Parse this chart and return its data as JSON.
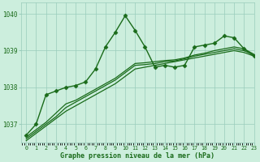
{
  "title": "Graphe pression niveau de la mer (hPa)",
  "background_color": "#cceedd",
  "grid_color": "#99ccbb",
  "line_color": "#1a6b1a",
  "marker_color": "#1a6b1a",
  "xlim": [
    -0.5,
    23
  ],
  "ylim": [
    1036.5,
    1040.3
  ],
  "xticks": [
    0,
    1,
    2,
    3,
    4,
    5,
    6,
    7,
    8,
    9,
    10,
    11,
    12,
    13,
    14,
    15,
    16,
    17,
    18,
    19,
    20,
    21,
    22,
    23
  ],
  "yticks": [
    1037,
    1038,
    1039,
    1040
  ],
  "series": [
    {
      "x": [
        0,
        1,
        2,
        3,
        4,
        5,
        6,
        7,
        8,
        9,
        10,
        11,
        12,
        13,
        14,
        15,
        16,
        17,
        18,
        19,
        20,
        21,
        22,
        23
      ],
      "y": [
        1036.7,
        1037.0,
        1037.8,
        1037.9,
        1038.0,
        1038.05,
        1038.15,
        1038.5,
        1039.1,
        1039.5,
        1039.95,
        1039.55,
        1039.1,
        1038.55,
        1038.6,
        1038.55,
        1038.6,
        1039.1,
        1039.15,
        1039.2,
        1039.4,
        1039.35,
        1039.05,
        1038.85
      ],
      "marker": "D",
      "linewidth": 1.0,
      "markersize": 2.5,
      "zorder": 5
    },
    {
      "x": [
        0,
        1,
        2,
        3,
        4,
        5,
        6,
        7,
        8,
        9,
        10,
        11,
        12,
        13,
        14,
        15,
        16,
        17,
        18,
        19,
        20,
        21,
        22,
        23
      ],
      "y": [
        1036.55,
        1036.75,
        1036.95,
        1037.15,
        1037.35,
        1037.5,
        1037.65,
        1037.8,
        1037.95,
        1038.1,
        1038.3,
        1038.5,
        1038.55,
        1038.6,
        1038.65,
        1038.7,
        1038.75,
        1038.8,
        1038.85,
        1038.9,
        1038.95,
        1039.0,
        1038.95,
        1038.85
      ],
      "marker": null,
      "linewidth": 0.9,
      "markersize": 0,
      "zorder": 2
    },
    {
      "x": [
        0,
        1,
        2,
        3,
        4,
        5,
        6,
        7,
        8,
        9,
        10,
        11,
        12,
        13,
        14,
        15,
        16,
        17,
        18,
        19,
        20,
        21,
        22,
        23
      ],
      "y": [
        1036.6,
        1036.8,
        1037.0,
        1037.2,
        1037.45,
        1037.6,
        1037.75,
        1037.9,
        1038.05,
        1038.2,
        1038.4,
        1038.6,
        1038.62,
        1038.65,
        1038.7,
        1038.72,
        1038.78,
        1038.85,
        1038.9,
        1038.95,
        1039.0,
        1039.05,
        1039.0,
        1038.88
      ],
      "marker": null,
      "linewidth": 0.9,
      "markersize": 0,
      "zorder": 2
    },
    {
      "x": [
        0,
        1,
        2,
        3,
        4,
        5,
        6,
        7,
        8,
        9,
        10,
        11,
        12,
        13,
        14,
        15,
        16,
        17,
        18,
        19,
        20,
        21,
        22,
        23
      ],
      "y": [
        1036.65,
        1036.85,
        1037.05,
        1037.3,
        1037.55,
        1037.65,
        1037.8,
        1037.95,
        1038.1,
        1038.25,
        1038.45,
        1038.65,
        1038.67,
        1038.7,
        1038.73,
        1038.75,
        1038.8,
        1038.88,
        1038.93,
        1039.0,
        1039.05,
        1039.1,
        1039.05,
        1038.9
      ],
      "marker": null,
      "linewidth": 0.9,
      "markersize": 0,
      "zorder": 2
    }
  ]
}
